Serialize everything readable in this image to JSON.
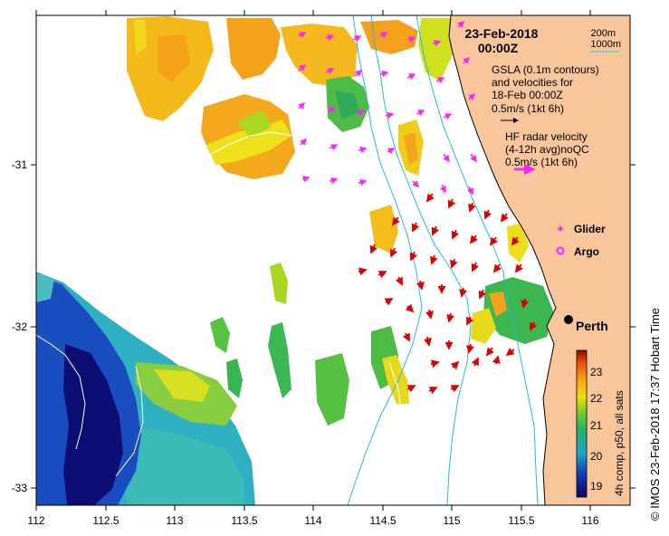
{
  "date": "23-Feb-2018",
  "time": "00:00Z",
  "scale_legend": {
    "line1": "200m",
    "line2": "1000m"
  },
  "gsla_legend": {
    "line1": "GSLA (0.1m contours)",
    "line2": "and velocities for",
    "line3": "18-Feb 00:00Z",
    "line4": "0.5m/s (1kt 6h)"
  },
  "hf_legend": {
    "line1": "HF radar velocity",
    "line2": "(4-12h avg)noQC",
    "line3": "0.5m/s (1kt 6h)"
  },
  "markers": {
    "glider": "Glider",
    "argo": "Argo"
  },
  "city": {
    "name": "Perth",
    "lon": 115.86,
    "lat": -31.95
  },
  "axes": {
    "x_ticks": [
      "112",
      "112.5",
      "113",
      "113.5",
      "114",
      "114.5",
      "115",
      "115.5",
      "116"
    ],
    "y_ticks": [
      "-31",
      "-32",
      "-33"
    ],
    "xlim": [
      112,
      116.3
    ],
    "ylim": [
      -33.1,
      -30.0
    ]
  },
  "colorbar": {
    "label": "4h comp, p50, all sats",
    "ticks": [
      "23",
      "22",
      "21",
      "20",
      "19"
    ],
    "range": [
      18.6,
      23.4
    ]
  },
  "credit": "© IMOS 23-Feb-2018 17:37 Hobart Time",
  "colors": {
    "land": "#f9c69b",
    "hf_arrow": "#dd0000",
    "gsla_arrow": "#ff22ff",
    "isobath": "#22bbdd",
    "scale_line": "#22cccc"
  }
}
